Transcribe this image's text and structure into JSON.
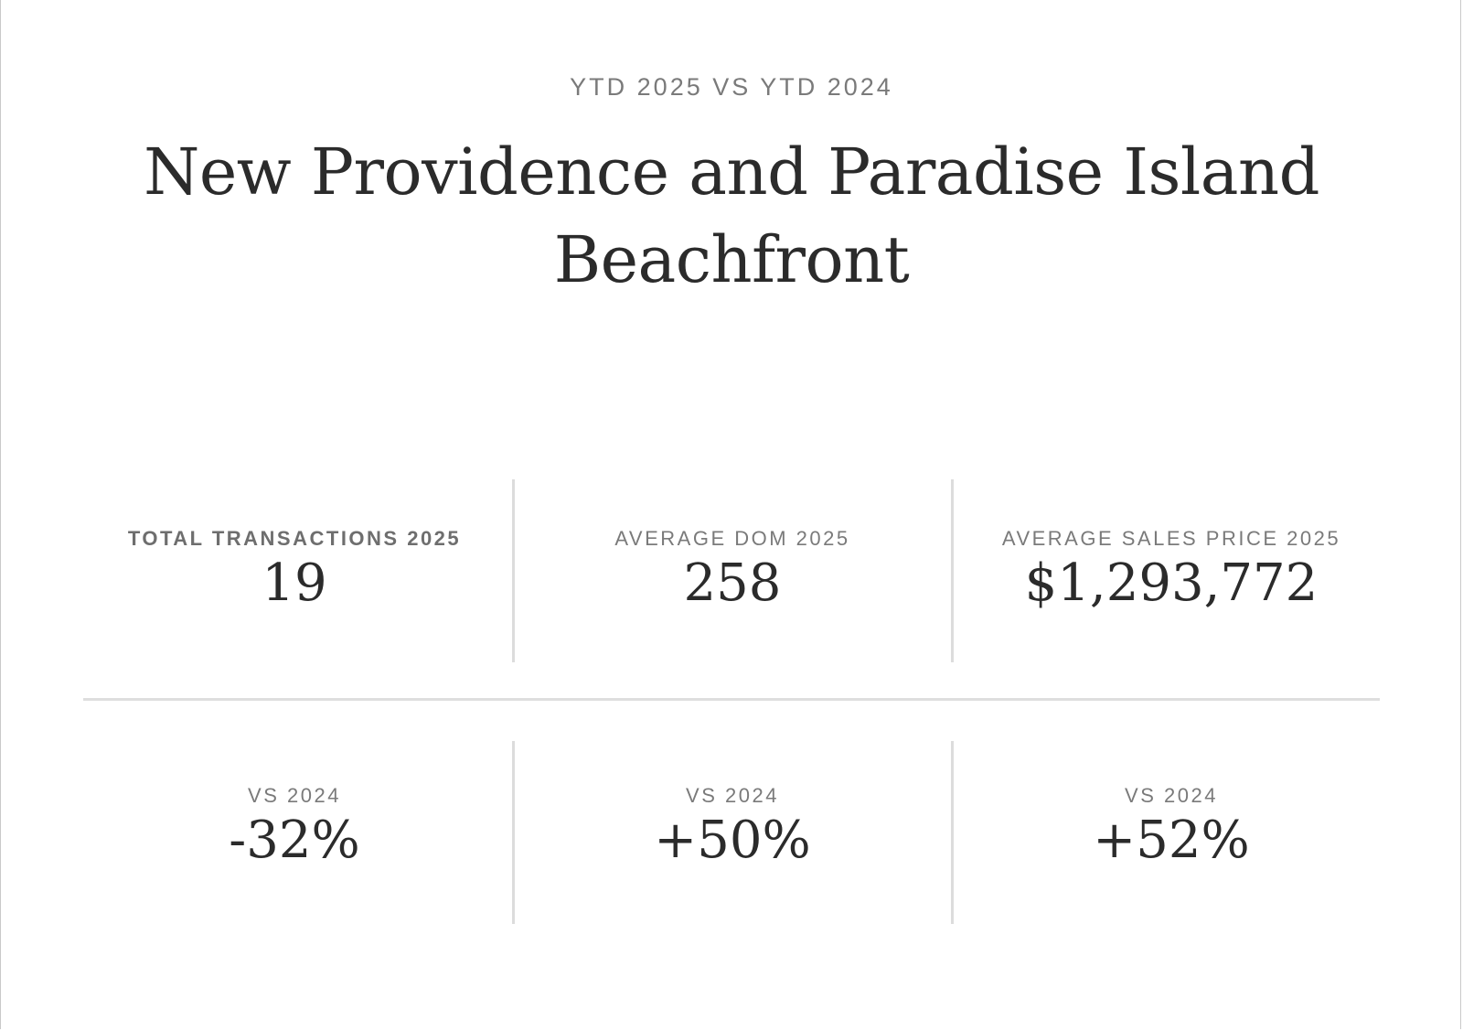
{
  "header": {
    "eyebrow": "YTD 2025 VS YTD 2024",
    "title_line1": "New Providence and Paradise Island",
    "title_line2": "Beachfront"
  },
  "stats_2025": [
    {
      "label": "TOTAL TRANSACTIONS 2025",
      "value": "19"
    },
    {
      "label": "AVERAGE DOM 2025",
      "value": "258"
    },
    {
      "label": "AVERAGE SALES PRICE 2025",
      "value": "$1,293,772"
    }
  ],
  "comparison_2024": [
    {
      "label": "VS 2024",
      "value": "-32%"
    },
    {
      "label": "VS 2024",
      "value": "+50%"
    },
    {
      "label": "VS 2024",
      "value": "+52%"
    }
  ],
  "colors": {
    "text": "#2b2b2b",
    "muted_label": "#7a7a7a",
    "divider": "#dedede"
  }
}
